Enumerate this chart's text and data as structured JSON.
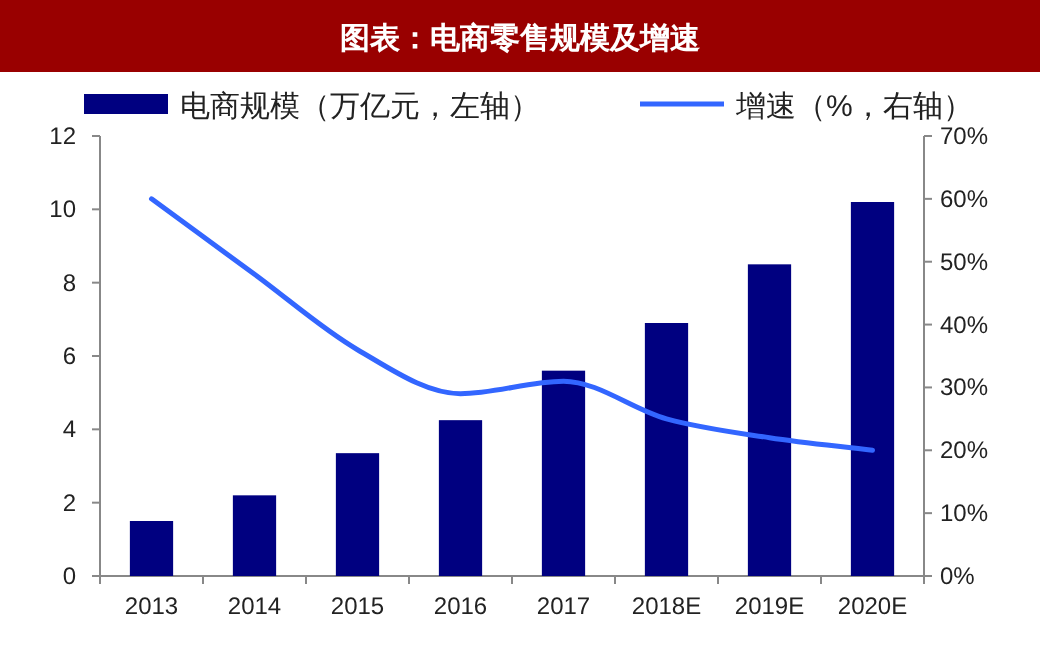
{
  "chart_data": {
    "type": "bar",
    "title": "图表：电商零售规模及增速",
    "categories": [
      "2013",
      "2014",
      "2015",
      "2016",
      "2017",
      "2018E",
      "2019E",
      "2020E"
    ],
    "series": [
      {
        "name": "电商规模（万亿元，左轴）",
        "color": "#000080",
        "values": [
          1.5,
          2.2,
          3.35,
          4.25,
          5.6,
          6.9,
          8.5,
          10.2
        ]
      },
      {
        "name": "增速（%，右轴）",
        "type": "line",
        "axis": "y2",
        "color": "#3366ff",
        "values": [
          60,
          48,
          36,
          29,
          31,
          25,
          22,
          20
        ]
      }
    ],
    "ylim": [
      0,
      12
    ],
    "yticks": [
      0,
      2,
      4,
      6,
      8,
      10,
      12
    ],
    "y2lim": [
      0,
      70
    ],
    "y2ticks": [
      {
        "value": 0,
        "label": "0%"
      },
      {
        "value": 10,
        "label": "10%"
      },
      {
        "value": 20,
        "label": "20%"
      },
      {
        "value": 30,
        "label": "30%"
      },
      {
        "value": 40,
        "label": "40%"
      },
      {
        "value": 50,
        "label": "50%"
      },
      {
        "value": 60,
        "label": "60%"
      },
      {
        "value": 70,
        "label": "70%"
      }
    ],
    "legend": "top",
    "grid": false
  }
}
